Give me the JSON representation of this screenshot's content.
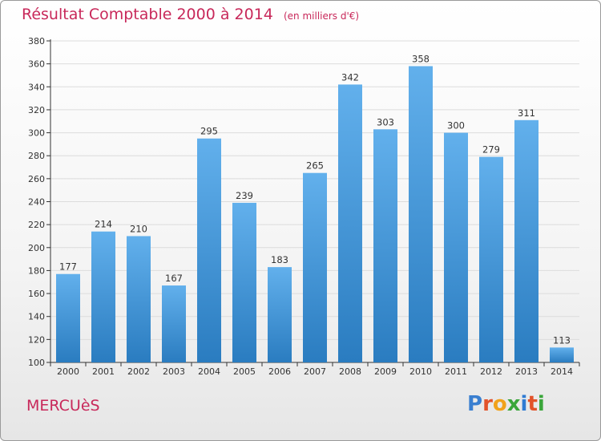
{
  "title": "Résultat Comptable 2000 à 2014",
  "subtitle": "(en milliers d'€)",
  "town": "MERCUèS",
  "logo": {
    "text": "Proxiti",
    "letter_colors": [
      "#3a7fd0",
      "#e2522a",
      "#f1a21b",
      "#3aa63a",
      "#2f7bd3",
      "#e2522a",
      "#3aa63a"
    ]
  },
  "colors": {
    "bar_light": "#62b0ec",
    "bar_dark": "#2a7cc0",
    "grid": "#dcdcdc",
    "axis": "#333333",
    "title": "#c8285a"
  },
  "chart_data": {
    "type": "bar",
    "categories": [
      "2000",
      "2001",
      "2002",
      "2003",
      "2004",
      "2005",
      "2006",
      "2007",
      "2008",
      "2009",
      "2010",
      "2011",
      "2012",
      "2013",
      "2014"
    ],
    "values": [
      177,
      214,
      210,
      167,
      295,
      239,
      183,
      265,
      342,
      303,
      358,
      300,
      279,
      311,
      113
    ],
    "ylim": [
      100,
      380
    ],
    "yticks": [
      100,
      120,
      140,
      160,
      180,
      200,
      220,
      240,
      260,
      280,
      300,
      320,
      340,
      360,
      380
    ],
    "grid": true
  }
}
